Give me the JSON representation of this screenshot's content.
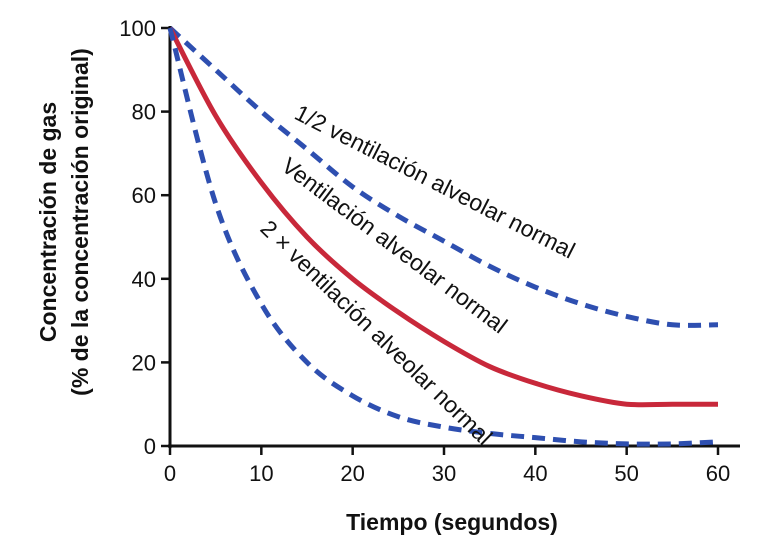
{
  "chart_data": {
    "type": "line",
    "xlabel": "Tiempo (segundos)",
    "ylabel": [
      "Concentración de gas",
      "(% de la concentración original)"
    ],
    "xlim": [
      0,
      60
    ],
    "ylim": [
      0,
      100
    ],
    "x_ticks": [
      "0",
      "10",
      "20",
      "30",
      "40",
      "50",
      "60"
    ],
    "y_ticks": [
      "0",
      "20",
      "40",
      "60",
      "80",
      "100"
    ],
    "grid": false,
    "series": [
      {
        "name": "1/2 ventilación alveolar normal",
        "style": "dashed",
        "color": "#2e4fb0",
        "x": [
          0,
          5,
          10,
          15,
          20,
          25,
          30,
          35,
          40,
          45,
          50,
          55,
          60
        ],
        "values": [
          100,
          90,
          80,
          71,
          62,
          55,
          49,
          43,
          38,
          34,
          31,
          29,
          29
        ]
      },
      {
        "name": "Ventilación alveolar normal",
        "style": "solid",
        "color": "#c8283a",
        "x": [
          0,
          5,
          10,
          15,
          20,
          25,
          30,
          35,
          40,
          45,
          50,
          55,
          60
        ],
        "values": [
          100,
          79,
          63,
          50,
          40,
          32,
          25,
          19,
          15,
          12,
          10,
          10,
          10
        ]
      },
      {
        "name": "2 × ventilación alveolar normal",
        "style": "dashed",
        "color": "#2e4fb0",
        "x": [
          0,
          5,
          10,
          15,
          20,
          25,
          30,
          35,
          40,
          45,
          50,
          55,
          60
        ],
        "values": [
          100,
          58,
          34,
          20,
          12,
          7,
          4.5,
          3,
          2,
          1,
          0.5,
          0.5,
          1
        ]
      }
    ]
  }
}
